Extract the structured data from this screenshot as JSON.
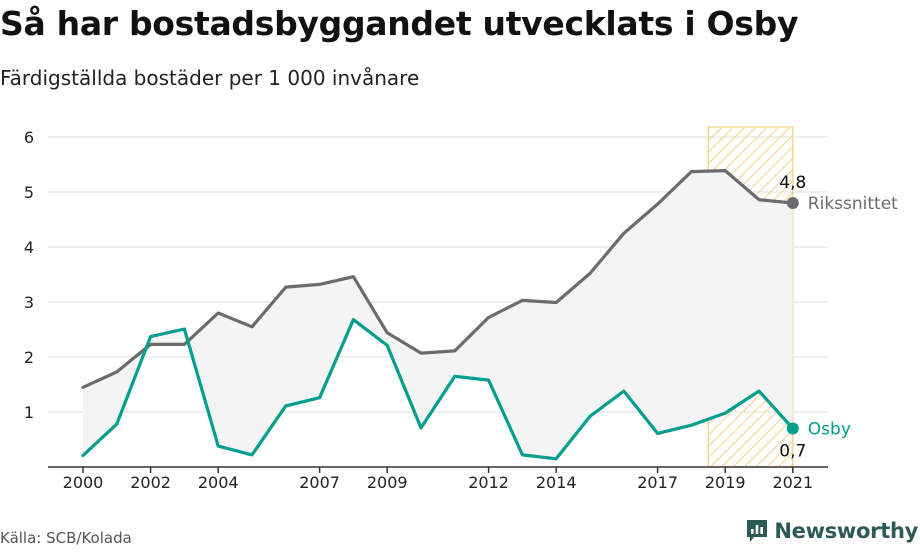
{
  "title": "Så har bostadsbyggandet utvecklats i Osby",
  "subtitle": "Färdigställda bostäder per 1 000 invånare",
  "source": "Källa: SCB/Kolada",
  "brand": {
    "name": "Newsworthy",
    "icon": "newsworthy-logo-icon",
    "color": "#2b5b56"
  },
  "chart_data": {
    "type": "line",
    "x": [
      2000,
      2001,
      2002,
      2003,
      2004,
      2005,
      2006,
      2007,
      2008,
      2009,
      2010,
      2011,
      2012,
      2013,
      2014,
      2015,
      2016,
      2017,
      2018,
      2019,
      2020,
      2021
    ],
    "x_ticks": [
      "2000",
      "2002",
      "2004",
      "2007",
      "2009",
      "2012",
      "2014",
      "2017",
      "2019",
      "2021"
    ],
    "y_ticks": [
      "1",
      "2",
      "3",
      "4",
      "5",
      "6"
    ],
    "ylim": [
      0,
      6
    ],
    "xlim": [
      1999.0,
      2021.5
    ],
    "grid": true,
    "highlight_range": [
      2018.5,
      2021
    ],
    "series": [
      {
        "name": "Rikssnittet",
        "color": "#6b6a6e",
        "values": [
          1.45,
          1.73,
          2.23,
          2.23,
          2.8,
          2.55,
          3.27,
          3.32,
          3.46,
          2.44,
          2.07,
          2.11,
          2.72,
          3.03,
          2.99,
          3.52,
          4.25,
          4.78,
          5.37,
          5.39,
          4.86,
          4.8
        ],
        "end_label": "4,8"
      },
      {
        "name": "Osby",
        "color": "#009e8e",
        "values": [
          0.21,
          0.78,
          2.37,
          2.51,
          0.38,
          0.22,
          1.11,
          1.26,
          2.68,
          2.21,
          0.71,
          1.65,
          1.58,
          0.22,
          0.15,
          0.92,
          1.38,
          0.61,
          0.76,
          0.98,
          1.38,
          0.7
        ],
        "end_label": "0,7"
      }
    ]
  }
}
